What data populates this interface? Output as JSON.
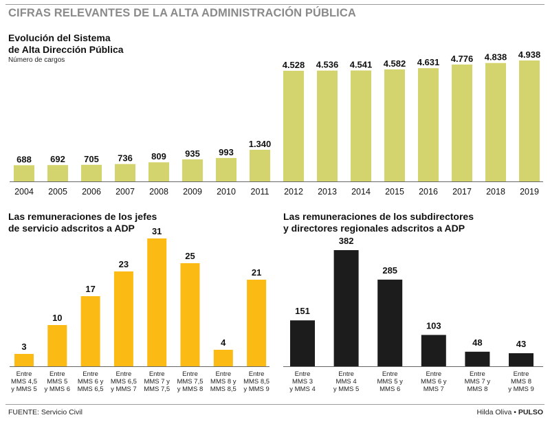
{
  "headline": "CIFRAS RELEVANTES DE LA ALTA ADMINISTRACIÓN PÚBLICA",
  "colors": {
    "green": "#d4d46e",
    "yellow": "#fbbb14",
    "black": "#1c1c1c"
  },
  "chart_data": [
    {
      "type": "bar",
      "title_line1": "Evolución del Sistema",
      "title_line2": "de Alta Dirección Pública",
      "subtitle": "Número de cargos",
      "categories": [
        "2004",
        "2005",
        "2006",
        "2007",
        "2008",
        "2009",
        "2010",
        "2011",
        "2012",
        "2013",
        "2014",
        "2015",
        "2016",
        "2017",
        "2018",
        "2019"
      ],
      "values": [
        688,
        692,
        705,
        736,
        809,
        935,
        993,
        1340,
        4528,
        4536,
        4541,
        4582,
        4631,
        4776,
        4838,
        4938
      ],
      "labels": [
        "688",
        "692",
        "705",
        "736",
        "809",
        "935",
        "993",
        "1.340",
        "4.528",
        "4.536",
        "4.541",
        "4.582",
        "4.631",
        "4.776",
        "4.838",
        "4.938"
      ]
    },
    {
      "type": "bar",
      "title_line1": "Las remuneraciones de los jefes",
      "title_line2": "de servicio adscritos a ADP",
      "categories": [
        [
          "Entre",
          "MMS 4,5",
          "y MMS 5"
        ],
        [
          "Entre",
          "MMS 5",
          "y MMS 6"
        ],
        [
          "Entre",
          "MMS 6 y",
          "MMS 6,5"
        ],
        [
          "Entre",
          "MMS 6,5",
          "y MMS 7"
        ],
        [
          "Entre",
          "MMS 7 y",
          "MMS 7,5"
        ],
        [
          "Entre",
          "MMS 7,5",
          "y MMS 8"
        ],
        [
          "Entre",
          "MMS 8 y",
          "MMS 8,5"
        ],
        [
          "Entre",
          "MMS 8,5",
          "y MMS 9"
        ]
      ],
      "values": [
        3,
        10,
        17,
        23,
        31,
        25,
        4,
        21
      ],
      "labels": [
        "3",
        "10",
        "17",
        "23",
        "31",
        "25",
        "4",
        "21"
      ]
    },
    {
      "type": "bar",
      "title_line1": "Las remuneraciones de los subdirectores",
      "title_line2": "y directores regionales adscritos a ADP",
      "categories": [
        [
          "Entre",
          "MMS 3",
          "y MMS 4"
        ],
        [
          "Entre",
          "MMS 4",
          "y MMS 5"
        ],
        [
          "Entre",
          "MMS 5 y",
          "MMS 6"
        ],
        [
          "Entre",
          "MMS 6 y",
          "MMS 7"
        ],
        [
          "Entre",
          "MMS 7 y",
          "MMS 8"
        ],
        [
          "Entre",
          "MMS 8",
          "y MMS 9"
        ]
      ],
      "values": [
        151,
        382,
        285,
        103,
        48,
        43
      ],
      "labels": [
        "151",
        "382",
        "285",
        "103",
        "48",
        "43"
      ]
    }
  ],
  "footer": {
    "source": "FUENTE: Servicio Civil",
    "author": "Hilda Oliva",
    "separator": "•",
    "brand": "PULSO"
  }
}
